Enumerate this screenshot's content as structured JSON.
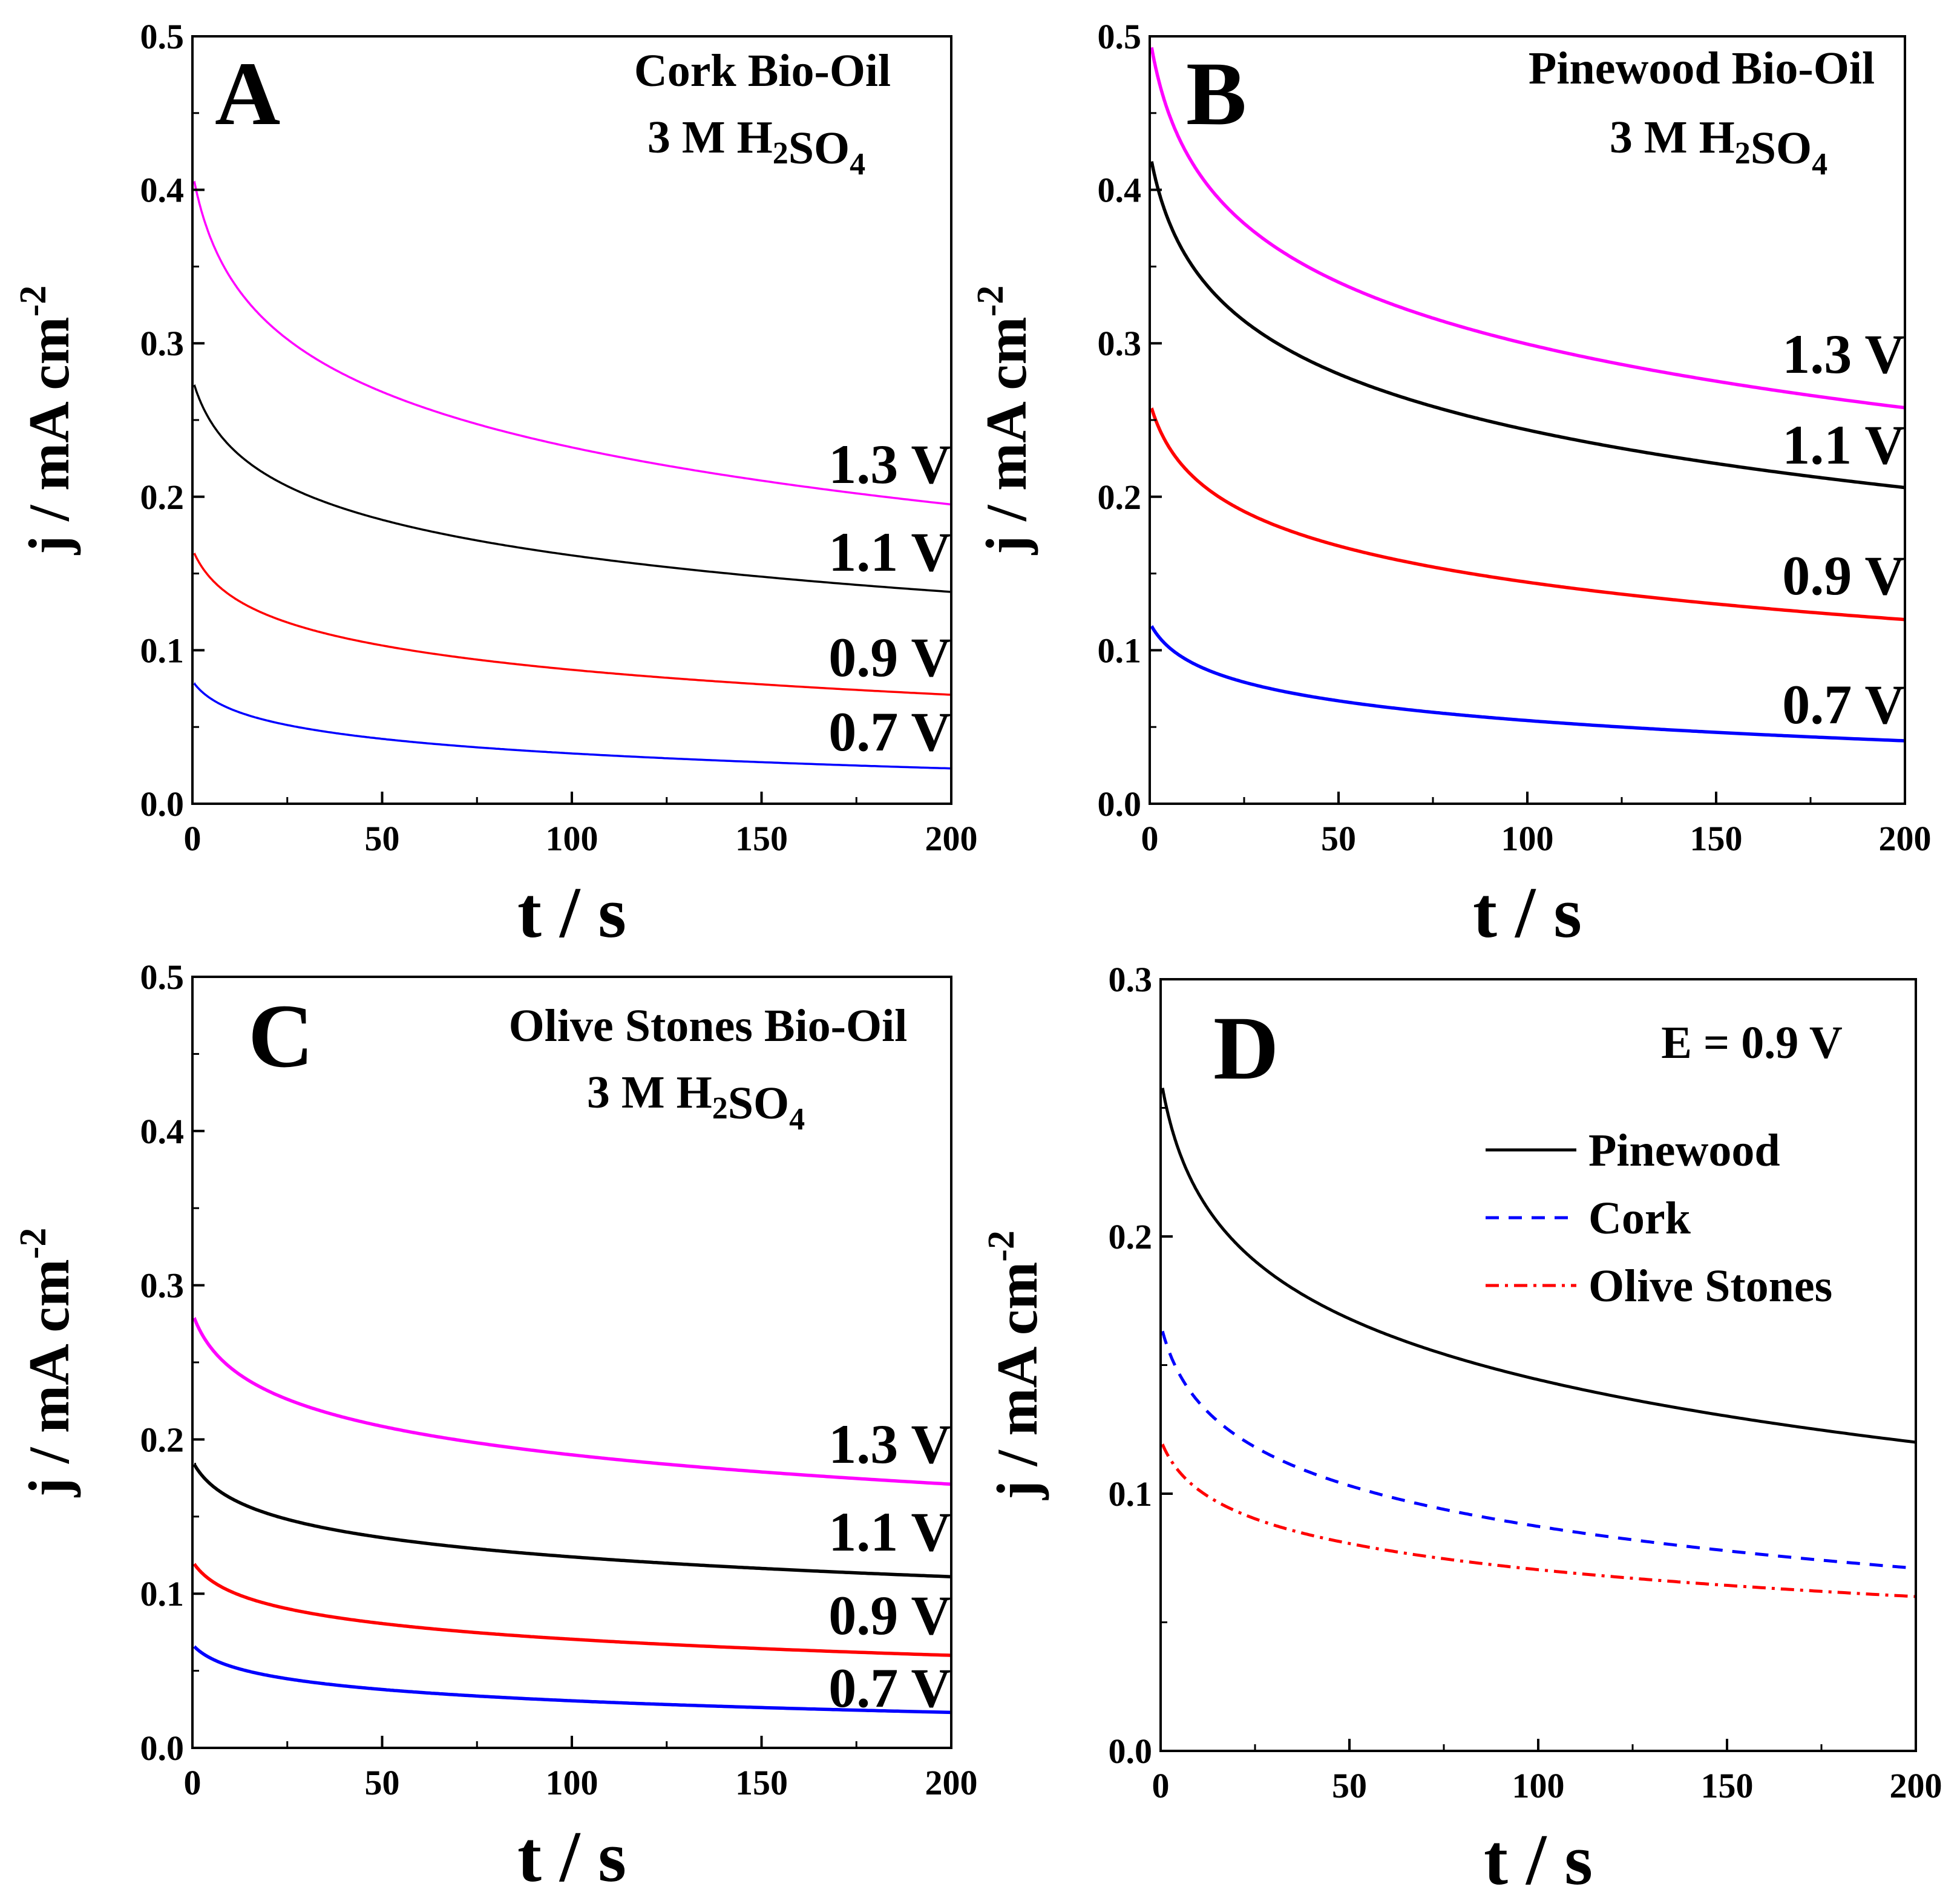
{
  "chart_data": [
    {
      "panel": "A",
      "type": "line",
      "title": "Cork Bio-Oil",
      "subtitle": "3 M H2SO4",
      "xlabel": "t / s",
      "ylabel": "j / mA cm-2",
      "xlim": [
        0,
        200
      ],
      "ylim": [
        0,
        0.5
      ],
      "xticks": [
        "0",
        "50",
        "100",
        "150",
        "200"
      ],
      "yticks": [
        "0.0",
        "0.1",
        "0.2",
        "0.3",
        "0.4",
        "0.5"
      ],
      "series": [
        {
          "name": "1.3 V",
          "color": "#ff00ff",
          "j0": 0.412,
          "j200": 0.195
        },
        {
          "name": "1.1 V",
          "color": "#000000",
          "j0": 0.277,
          "j200": 0.138
        },
        {
          "name": "0.9 V",
          "color": "#ff0000",
          "j0": 0.166,
          "j200": 0.071
        },
        {
          "name": "0.7 V",
          "color": "#0000ff",
          "j0": 0.08,
          "j200": 0.023
        }
      ]
    },
    {
      "panel": "B",
      "type": "line",
      "title": "Pinewood Bio-Oil",
      "subtitle": "3 M H2SO4",
      "xlabel": "t / s",
      "ylabel": "j / mA cm-2",
      "xlim": [
        0,
        200
      ],
      "ylim": [
        0,
        0.5
      ],
      "xticks": [
        "0",
        "50",
        "100",
        "150",
        "200"
      ],
      "yticks": [
        "0.0",
        "0.1",
        "0.2",
        "0.3",
        "0.4",
        "0.5"
      ],
      "series": [
        {
          "name": "1.3 V",
          "color": "#ff00ff",
          "j0": 0.5,
          "j200": 0.258
        },
        {
          "name": "1.1 V",
          "color": "#000000",
          "j0": 0.425,
          "j200": 0.206
        },
        {
          "name": "0.9 V",
          "color": "#ff0000",
          "j0": 0.262,
          "j200": 0.12
        },
        {
          "name": "0.7 V",
          "color": "#0000ff",
          "j0": 0.118,
          "j200": 0.041
        }
      ]
    },
    {
      "panel": "C",
      "type": "line",
      "title": "Olive Stones Bio-Oil",
      "subtitle": "3 M H2SO4",
      "xlabel": "t / s",
      "ylabel": "j / mA cm-2",
      "xlim": [
        0,
        200
      ],
      "ylim": [
        0,
        0.5
      ],
      "xticks": [
        "0",
        "50",
        "100",
        "150",
        "200"
      ],
      "yticks": [
        "0.0",
        "0.1",
        "0.2",
        "0.3",
        "0.4",
        "0.5"
      ],
      "series": [
        {
          "name": "1.3 V",
          "color": "#ff00ff",
          "j0": 0.282,
          "j200": 0.171
        },
        {
          "name": "1.1 V",
          "color": "#000000",
          "j0": 0.186,
          "j200": 0.111
        },
        {
          "name": "0.9 V",
          "color": "#ff0000",
          "j0": 0.121,
          "j200": 0.06
        },
        {
          "name": "0.7 V",
          "color": "#0000ff",
          "j0": 0.067,
          "j200": 0.023
        }
      ]
    },
    {
      "panel": "D",
      "type": "line",
      "title": "E = 0.9 V",
      "xlabel": "t / s",
      "ylabel": "j / mA cm-2",
      "xlim": [
        0,
        200
      ],
      "ylim": [
        0,
        0.3
      ],
      "xticks": [
        "0",
        "50",
        "100",
        "150",
        "200"
      ],
      "yticks": [
        "0.0",
        "0.1",
        "0.2",
        "0.3"
      ],
      "legend_position": "right",
      "series": [
        {
          "name": "Pinewood",
          "color": "#000000",
          "style": "solid",
          "j0": 0.262,
          "j200": 0.12
        },
        {
          "name": "Cork",
          "color": "#0000ff",
          "style": "dash",
          "j0": 0.166,
          "j200": 0.071
        },
        {
          "name": "Olive Stones",
          "color": "#ff0000",
          "style": "dashdot",
          "j0": 0.121,
          "j200": 0.06
        }
      ]
    }
  ]
}
